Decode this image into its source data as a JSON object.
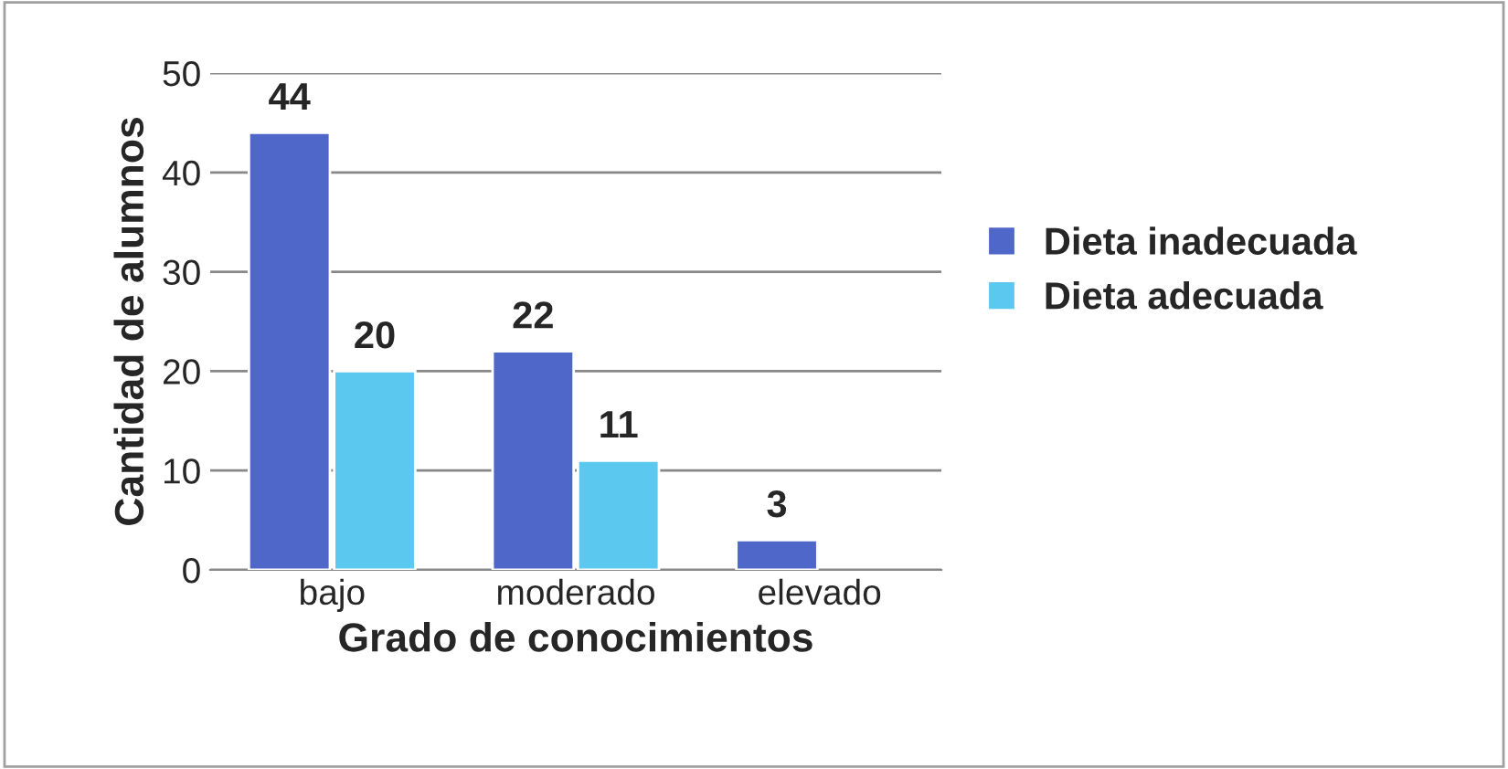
{
  "chart_data": {
    "type": "bar",
    "xlabel": "Grado de conocimientos",
    "ylabel": "Cantidad de alumnos",
    "categories": [
      "bajo",
      "moderado",
      "elevado"
    ],
    "series": [
      {
        "name": "Dieta inadecuada",
        "color": "#4f67c9",
        "values": [
          44,
          22,
          3
        ]
      },
      {
        "name": "Dieta adecuada",
        "color": "#5bc8f0",
        "values": [
          20,
          11,
          null
        ]
      }
    ],
    "ylim": [
      0,
      50
    ],
    "yticks": [
      0,
      10,
      20,
      30,
      40,
      50
    ],
    "grid": "y",
    "legend": "right",
    "data_labels": true
  }
}
